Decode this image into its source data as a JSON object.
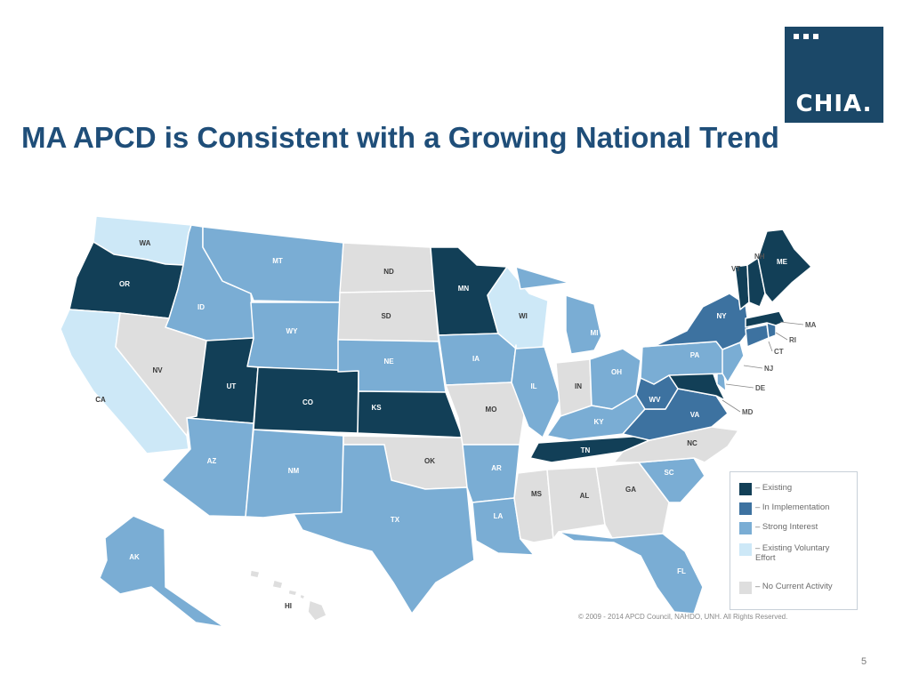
{
  "slide": {
    "title": "MA APCD is Consistent with a Growing National Trend",
    "logo_text": "CHIA.",
    "page_number": "5",
    "copyright": "© 2009 - 2014 APCD Council, NAHDO, UNH. All Rights Reserved."
  },
  "legend": {
    "items": [
      {
        "label": "– Existing",
        "color": "#123f57"
      },
      {
        "label": "– In Implementation",
        "color": "#3d72a0"
      },
      {
        "label": "– Strong Interest",
        "color": "#7aadd4"
      },
      {
        "label": "– Existing Voluntary Effort",
        "color": "#cde8f7"
      },
      {
        "label": "– No Current Activity",
        "color": "#dedede"
      }
    ]
  },
  "map": {
    "states": [
      {
        "abbr": "WA",
        "status": "Existing Voluntary Effort"
      },
      {
        "abbr": "OR",
        "status": "Existing"
      },
      {
        "abbr": "CA",
        "status": "Existing Voluntary Effort"
      },
      {
        "abbr": "ID",
        "status": "Strong Interest"
      },
      {
        "abbr": "NV",
        "status": "No Current Activity"
      },
      {
        "abbr": "MT",
        "status": "Strong Interest"
      },
      {
        "abbr": "WY",
        "status": "Strong Interest"
      },
      {
        "abbr": "UT",
        "status": "Existing"
      },
      {
        "abbr": "AZ",
        "status": "Strong Interest"
      },
      {
        "abbr": "CO",
        "status": "Existing"
      },
      {
        "abbr": "NM",
        "status": "Strong Interest"
      },
      {
        "abbr": "ND",
        "status": "No Current Activity"
      },
      {
        "abbr": "SD",
        "status": "No Current Activity"
      },
      {
        "abbr": "NE",
        "status": "Strong Interest"
      },
      {
        "abbr": "KS",
        "status": "Existing"
      },
      {
        "abbr": "OK",
        "status": "No Current Activity"
      },
      {
        "abbr": "TX",
        "status": "Strong Interest"
      },
      {
        "abbr": "MN",
        "status": "Existing"
      },
      {
        "abbr": "IA",
        "status": "Strong Interest"
      },
      {
        "abbr": "MO",
        "status": "No Current Activity"
      },
      {
        "abbr": "AR",
        "status": "Strong Interest"
      },
      {
        "abbr": "LA",
        "status": "Strong Interest"
      },
      {
        "abbr": "WI",
        "status": "Existing Voluntary Effort"
      },
      {
        "abbr": "IL",
        "status": "Strong Interest"
      },
      {
        "abbr": "MI",
        "status": "Strong Interest"
      },
      {
        "abbr": "IN",
        "status": "No Current Activity"
      },
      {
        "abbr": "OH",
        "status": "Strong Interest"
      },
      {
        "abbr": "KY",
        "status": "Strong Interest"
      },
      {
        "abbr": "TN",
        "status": "Existing"
      },
      {
        "abbr": "MS",
        "status": "No Current Activity"
      },
      {
        "abbr": "AL",
        "status": "No Current Activity"
      },
      {
        "abbr": "GA",
        "status": "No Current Activity"
      },
      {
        "abbr": "FL",
        "status": "Strong Interest"
      },
      {
        "abbr": "SC",
        "status": "Strong Interest"
      },
      {
        "abbr": "NC",
        "status": "No Current Activity"
      },
      {
        "abbr": "VA",
        "status": "In Implementation"
      },
      {
        "abbr": "WV",
        "status": "In Implementation"
      },
      {
        "abbr": "MD",
        "status": "Existing"
      },
      {
        "abbr": "DE",
        "status": "Strong Interest"
      },
      {
        "abbr": "PA",
        "status": "Strong Interest"
      },
      {
        "abbr": "NJ",
        "status": "Strong Interest"
      },
      {
        "abbr": "NY",
        "status": "In Implementation"
      },
      {
        "abbr": "CT",
        "status": "In Implementation"
      },
      {
        "abbr": "RI",
        "status": "In Implementation"
      },
      {
        "abbr": "MA",
        "status": "Existing"
      },
      {
        "abbr": "VT",
        "status": "Existing"
      },
      {
        "abbr": "NH",
        "status": "Existing"
      },
      {
        "abbr": "ME",
        "status": "Existing"
      },
      {
        "abbr": "AK",
        "status": "Strong Interest"
      },
      {
        "abbr": "HI",
        "status": "No Current Activity"
      }
    ]
  }
}
